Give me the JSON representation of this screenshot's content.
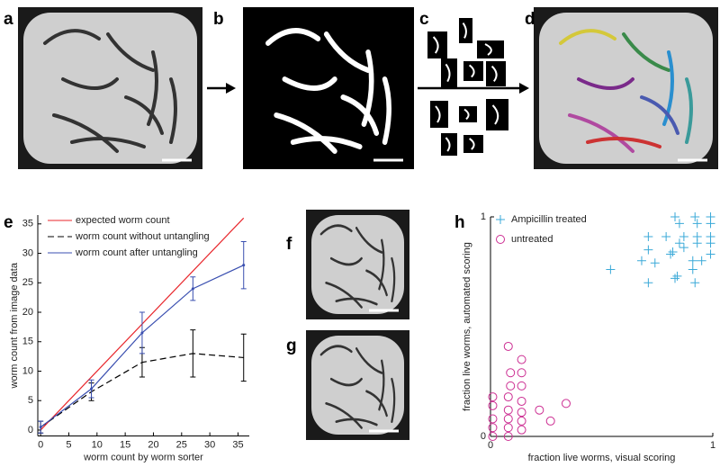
{
  "panels": [
    "a",
    "b",
    "c",
    "d",
    "e",
    "f",
    "g",
    "h"
  ],
  "chart_data": [
    {
      "type": "line",
      "xlabel": "worm count by worm sorter",
      "ylabel": "worm count from image data",
      "xlim": [
        -0.5,
        37
      ],
      "ylim": [
        -1,
        36.5
      ],
      "xticks": [
        0,
        5,
        10,
        15,
        20,
        25,
        30,
        35
      ],
      "yticks": [
        0,
        5,
        10,
        15,
        20,
        25,
        30,
        35
      ],
      "series": [
        {
          "name": "expected worm count",
          "color": "#e8262b",
          "x": [
            0,
            36
          ],
          "values": [
            0,
            36
          ]
        },
        {
          "name": "worm count without untangling",
          "color": "#000000",
          "dashed": true,
          "x": [
            0,
            9,
            18,
            27,
            36
          ],
          "values": [
            0.5,
            6.5,
            11.5,
            13,
            12.3
          ],
          "errors": [
            1,
            1.5,
            2.5,
            4,
            4
          ]
        },
        {
          "name": "worm count after untangling",
          "color": "#3a4fb0",
          "x": [
            0,
            9,
            18,
            27,
            36
          ],
          "values": [
            0.5,
            7,
            16.5,
            24,
            28
          ],
          "errors": [
            1,
            1.5,
            3.5,
            2,
            4
          ]
        }
      ]
    },
    {
      "type": "scatter",
      "xlabel": "fraction live worms, visual scoring",
      "ylabel": "fraction live worms, automated scoring",
      "xlim": [
        0,
        1
      ],
      "ylim": [
        0,
        1
      ],
      "xticks": [
        0,
        1
      ],
      "yticks": [
        0,
        1
      ],
      "series": [
        {
          "name": "Ampicillin treated",
          "color": "#3aa9d8",
          "marker": "+",
          "x": [
            0.83,
            0.92,
            0.99,
            0.85,
            0.93,
            0.99,
            0.71,
            0.79,
            0.87,
            0.93,
            0.99,
            0.85,
            0.93,
            0.99,
            0.71,
            0.82,
            0.87,
            0.99,
            0.68,
            0.74,
            0.81,
            0.91,
            0.95,
            0.54,
            0.84,
            0.91,
            0.71,
            0.83,
            0.92
          ],
          "values": [
            1.0,
            1.0,
            1.0,
            0.97,
            0.97,
            0.97,
            0.91,
            0.91,
            0.91,
            0.91,
            0.91,
            0.88,
            0.88,
            0.88,
            0.85,
            0.84,
            0.86,
            0.83,
            0.8,
            0.79,
            0.83,
            0.8,
            0.8,
            0.76,
            0.73,
            0.76,
            0.7,
            0.72,
            0.7
          ]
        },
        {
          "name": "untreated",
          "color": "#cc2d92",
          "marker": "o",
          "x": [
            0.01,
            0.01,
            0.01,
            0.01,
            0.01,
            0.08,
            0.08,
            0.08,
            0.08,
            0.08,
            0.09,
            0.09,
            0.14,
            0.14,
            0.14,
            0.14,
            0.14,
            0.14,
            0.14,
            0.22,
            0.27,
            0.34,
            0.08
          ],
          "values": [
            0.18,
            0.14,
            0.08,
            0.04,
            0.0,
            0.18,
            0.12,
            0.08,
            0.04,
            0.0,
            0.29,
            0.23,
            0.16,
            0.11,
            0.07,
            0.03,
            0.35,
            0.29,
            0.23,
            0.12,
            0.07,
            0.15,
            0.41
          ]
        }
      ]
    }
  ]
}
